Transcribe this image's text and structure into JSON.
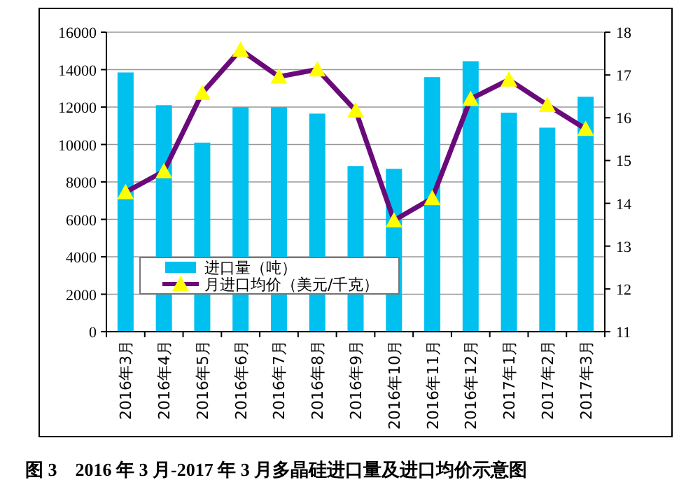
{
  "chart_data": {
    "type": "bar",
    "title": "图 3　2016 年 3 月-2017 年 3 月多晶硅进口量及进口均价示意图",
    "categories": [
      "2016年3月",
      "2016年4月",
      "2016年5月",
      "2016年6月",
      "2016年7月",
      "2016年8月",
      "2016年9月",
      "2016年10月",
      "2016年11月",
      "2016年12月",
      "2017年1月",
      "2017年2月",
      "2017年3月"
    ],
    "series": [
      {
        "name": "进口量（吨）",
        "color": "#00c0f0",
        "values": [
          13850,
          12100,
          10100,
          12000,
          12000,
          11650,
          8850,
          8700,
          13600,
          14450,
          11700,
          10900,
          12550
        ]
      },
      {
        "name": "月进口均价（美元/千克）",
        "type": "line",
        "axis": "y2",
        "color": "#6a0a7a",
        "marker": "triangle",
        "values": [
          14.26,
          14.75,
          16.58,
          17.59,
          16.96,
          17.13,
          16.17,
          13.6,
          14.12,
          16.44,
          16.89,
          16.3,
          15.74
        ]
      }
    ],
    "ylim": [
      0,
      16000
    ],
    "yticks": [
      0,
      2000,
      4000,
      6000,
      8000,
      10000,
      12000,
      14000,
      16000
    ],
    "y2lim": [
      11,
      18
    ],
    "y2ticks": [
      11,
      12,
      13,
      14,
      15,
      16,
      17,
      18
    ],
    "grid": "y",
    "legend": "bottom left"
  }
}
